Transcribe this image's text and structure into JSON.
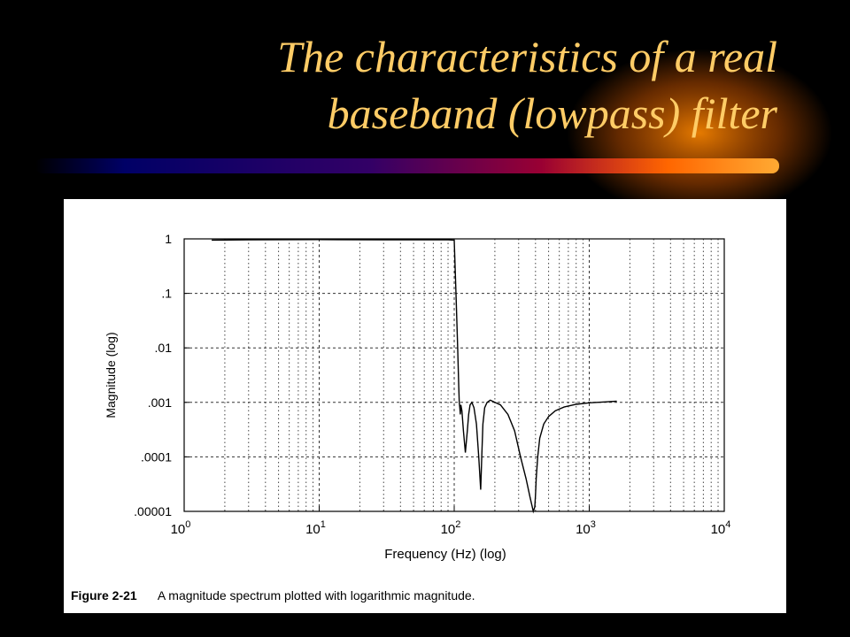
{
  "slide": {
    "title_line1": "The characteristics of a real",
    "title_line2": "baseband (lowpass) filter"
  },
  "colors": {
    "background": "#000000",
    "title": "#ffcc66",
    "banner_start": "#000066",
    "banner_mid": "#990033",
    "banner_end": "#ff9900",
    "figure_bg": "#ffffff",
    "curve": "#000000"
  },
  "figure": {
    "caption_number": "Figure 2-21",
    "caption_text": "A magnitude spectrum plotted with logarithmic magnitude."
  },
  "chart_data": {
    "type": "line",
    "title": "",
    "xlabel": "Frequency (Hz) (log)",
    "ylabel": "Magnitude (log)",
    "x_scale": "log",
    "y_scale": "log",
    "xlim": [
      1,
      10000
    ],
    "ylim": [
      1e-05,
      1
    ],
    "grid": true,
    "x_ticks": [
      {
        "base": "10",
        "exp": "0"
      },
      {
        "base": "10",
        "exp": "1"
      },
      {
        "base": "10",
        "exp": "2"
      },
      {
        "base": "10",
        "exp": "3"
      },
      {
        "base": "10",
        "exp": "4"
      }
    ],
    "y_tick_labels": [
      "1",
      ".1",
      ".01",
      ".001",
      ".0001",
      ".00001"
    ],
    "series": [
      {
        "x": [
          1.6,
          3,
          10,
          30,
          60,
          90,
          100,
          103,
          106,
          108,
          109,
          110,
          111,
          112,
          114,
          117,
          121,
          125,
          128,
          131,
          135,
          140,
          146,
          152,
          157,
          160,
          163,
          168,
          175,
          185,
          200,
          220,
          250,
          280,
          310,
          340,
          365,
          385,
          395,
          400,
          405,
          415,
          430,
          460,
          500,
          560,
          650,
          800,
          1000,
          1300,
          1600
        ],
        "y": [
          0.95,
          0.96,
          0.97,
          0.96,
          0.96,
          0.96,
          0.95,
          0.1,
          0.01,
          0.002,
          0.001,
          0.0008,
          0.0006,
          0.0009,
          0.0007,
          0.0003,
          0.00012,
          0.0003,
          0.0006,
          0.0009,
          0.001,
          0.0008,
          0.0004,
          0.0001,
          2.5e-05,
          0.0001,
          0.0004,
          0.0008,
          0.001,
          0.0011,
          0.001,
          0.0009,
          0.0006,
          0.0003,
          0.0001,
          4e-05,
          1.8e-05,
          1e-05,
          1.2e-05,
          2e-05,
          4e-05,
          0.0001,
          0.00022,
          0.0004,
          0.00055,
          0.0007,
          0.00082,
          0.00092,
          0.00098,
          0.00102,
          0.00105
        ]
      }
    ]
  }
}
